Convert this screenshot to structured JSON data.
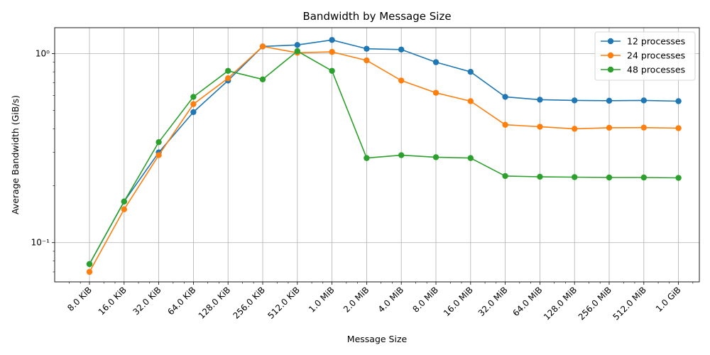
{
  "chart_data": {
    "type": "line",
    "title": "Bandwidth by Message Size",
    "xlabel": "Message Size",
    "ylabel": "Average Bandwidth (GiB/s)",
    "x_scale": "log2",
    "y_scale": "log10",
    "ylim": [
      0.062,
      1.37
    ],
    "y_ticks": [
      0.1,
      1
    ],
    "y_tick_labels": [
      "10⁻¹",
      "10⁰"
    ],
    "grid": true,
    "legend_position": "top-right",
    "categories": [
      "8.0 KiB",
      "16.0 KiB",
      "32.0 KiB",
      "64.0 KiB",
      "128.0 KiB",
      "256.0 KiB",
      "512.0 KiB",
      "1.0 MiB",
      "2.0 MiB",
      "4.0 MiB",
      "8.0 MiB",
      "16.0 MiB",
      "32.0 MiB",
      "64.0 MiB",
      "128.0 MiB",
      "256.0 MiB",
      "512.0 MiB",
      "1.0 GiB"
    ],
    "series": [
      {
        "name": "12 processes",
        "color": "#1f77b4",
        "values": [
          0.077,
          0.165,
          0.3,
          0.49,
          0.72,
          1.09,
          1.11,
          1.18,
          1.06,
          1.05,
          0.9,
          0.8,
          0.59,
          0.57,
          0.565,
          0.563,
          0.565,
          0.56
        ]
      },
      {
        "name": "24 processes",
        "color": "#ff7f0e",
        "values": [
          0.07,
          0.15,
          0.29,
          0.54,
          0.74,
          1.09,
          1.01,
          1.02,
          0.92,
          0.72,
          0.62,
          0.56,
          0.42,
          0.41,
          0.4,
          0.405,
          0.406,
          0.403
        ]
      },
      {
        "name": "48 processes",
        "color": "#2ca02c",
        "values": [
          0.077,
          0.165,
          0.34,
          0.59,
          0.81,
          0.73,
          1.03,
          0.81,
          0.28,
          0.29,
          0.283,
          0.28,
          0.225,
          0.223,
          0.222,
          0.221,
          0.221,
          0.22
        ]
      }
    ]
  }
}
